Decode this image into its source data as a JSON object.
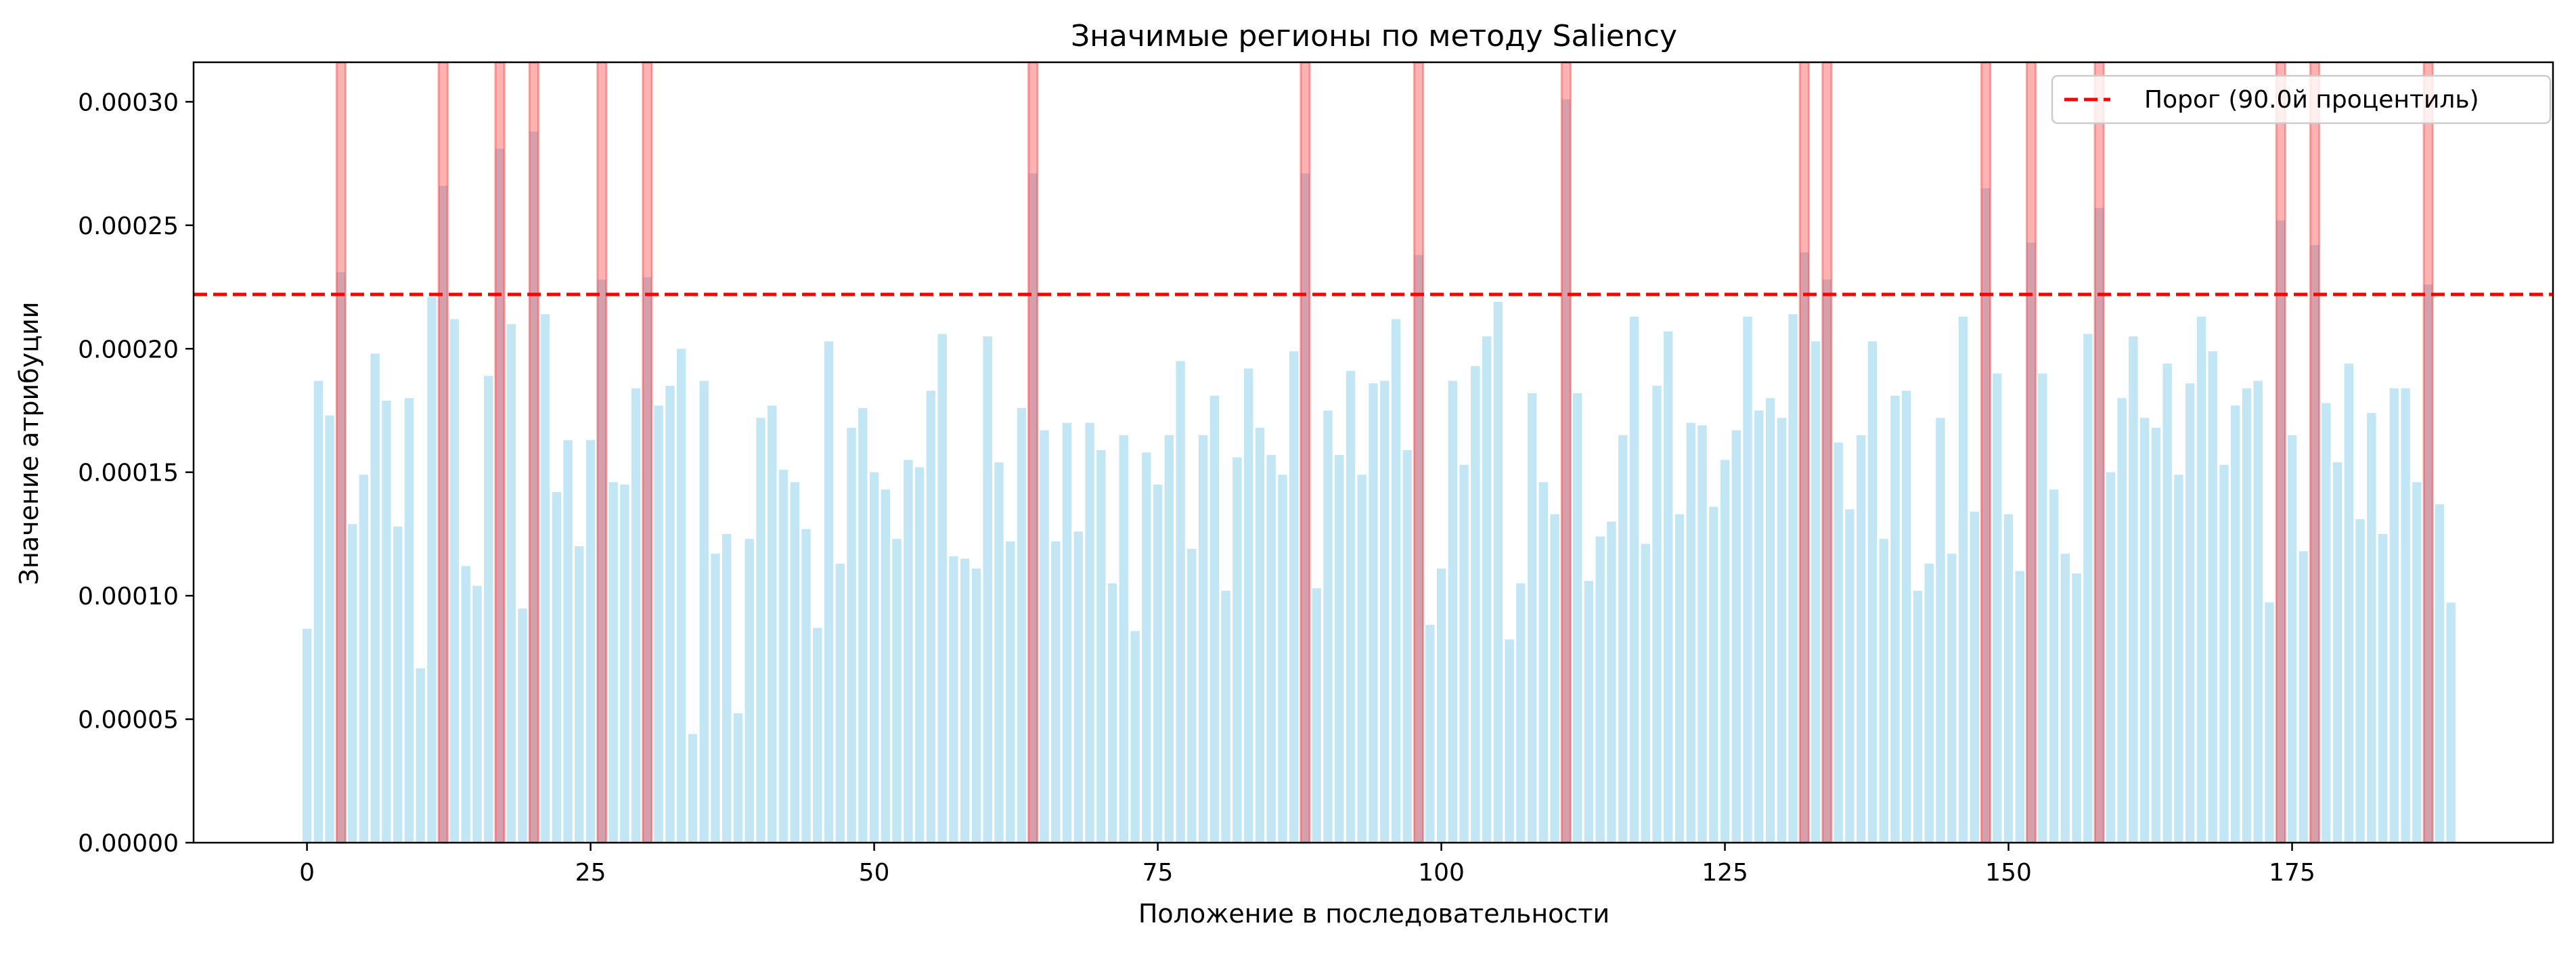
{
  "chart_data": {
    "type": "bar",
    "title": "Значимые регионы по методу Saliency",
    "xlabel": "Положение в последовательности",
    "ylabel": "Значение атрибуции",
    "xlim": [
      -10,
      198
    ],
    "ylim": [
      0,
      0.000316
    ],
    "xticks": [
      0,
      25,
      50,
      75,
      100,
      125,
      150,
      175
    ],
    "xtick_labels": [
      "0",
      "25",
      "50",
      "75",
      "100",
      "125",
      "150",
      "175"
    ],
    "yticks": [
      0,
      5e-05,
      0.0001,
      0.00015,
      0.0002,
      0.00025,
      0.0003
    ],
    "ytick_labels": [
      "0.00000",
      "0.00005",
      "0.00010",
      "0.00015",
      "0.00020",
      "0.00025",
      "0.00030"
    ],
    "bar_color": "#87ceeb",
    "highlight_color": "#ff0000",
    "threshold": {
      "value": 0.000222,
      "label": "Порог (90.0й процентиль)",
      "color": "#ff0000",
      "style": "dashed"
    },
    "legend_position": "top-right",
    "grid": false,
    "values": [
      8.66e-05,
      0.000187,
      0.000173,
      0.000231,
      0.000129,
      0.000149,
      0.000198,
      0.000179,
      0.000128,
      0.00018,
      7.06e-05,
      0.000221,
      0.000266,
      0.000212,
      0.000112,
      0.000104,
      0.000189,
      0.000281,
      0.00021,
      9.48e-05,
      0.000288,
      0.000214,
      0.000142,
      0.000163,
      0.00012,
      0.000163,
      0.000228,
      0.000146,
      0.000145,
      0.000184,
      0.000229,
      0.000177,
      0.000185,
      0.0002,
      4.4e-05,
      0.000187,
      0.000117,
      0.000125,
      5.24e-05,
      0.000123,
      0.000172,
      0.000177,
      0.000151,
      0.000146,
      0.000127,
      8.7e-05,
      0.000203,
      0.000113,
      0.000168,
      0.000176,
      0.00015,
      0.000143,
      0.000123,
      0.000155,
      0.000152,
      0.000183,
      0.000206,
      0.000116,
      0.000115,
      0.000111,
      0.000205,
      0.000154,
      0.000122,
      0.000176,
      0.000271,
      0.000167,
      0.000122,
      0.00017,
      0.000126,
      0.00017,
      0.000159,
      0.000105,
      0.000165,
      8.57e-05,
      0.000158,
      0.000145,
      0.000165,
      0.000195,
      0.000119,
      0.000165,
      0.000181,
      0.000102,
      0.000156,
      0.000192,
      0.000168,
      0.000157,
      0.000149,
      0.000199,
      0.000271,
      0.000103,
      0.000175,
      0.000157,
      0.000191,
      0.000149,
      0.000186,
      0.000187,
      0.000212,
      0.000159,
      0.000238,
      8.82e-05,
      0.000111,
      0.000187,
      0.000153,
      0.000193,
      0.000205,
      0.000219,
      8.23e-05,
      0.000105,
      0.000182,
      0.000146,
      0.000133,
      0.000301,
      0.000182,
      0.000106,
      0.000124,
      0.00013,
      0.000165,
      0.000213,
      0.000121,
      0.000185,
      0.000207,
      0.000133,
      0.00017,
      0.000169,
      0.000136,
      0.000155,
      0.000167,
      0.000213,
      0.000175,
      0.00018,
      0.000172,
      0.000214,
      0.000239,
      0.000203,
      0.000228,
      0.000162,
      0.000135,
      0.000165,
      0.000203,
      0.000123,
      0.000181,
      0.000183,
      0.000102,
      0.000113,
      0.000172,
      0.000117,
      0.000213,
      0.000134,
      0.000265,
      0.00019,
      0.000133,
      0.00011,
      0.000243,
      0.00019,
      0.000143,
      0.000117,
      0.000109,
      0.000206,
      0.000257,
      0.00015,
      0.00018,
      0.000205,
      0.000172,
      0.000168,
      0.000194,
      0.000149,
      0.000186,
      0.000213,
      0.000199,
      0.000153,
      0.000177,
      0.000184,
      0.000187,
      9.73e-05,
      0.000252,
      0.000165,
      0.000118,
      0.000242,
      0.000178,
      0.000154,
      0.000194,
      0.000131,
      0.000174,
      0.000125,
      0.000184,
      0.000184,
      0.000146,
      0.000226,
      0.000137,
      9.72e-05
    ]
  }
}
